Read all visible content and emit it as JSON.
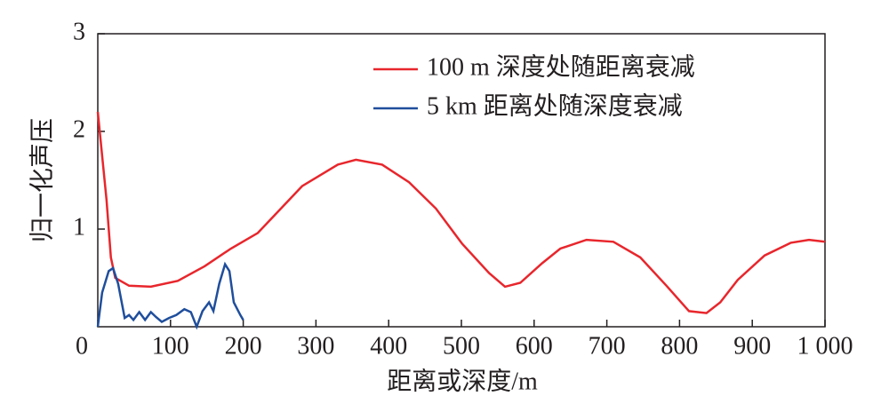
{
  "chart_data": {
    "type": "line",
    "xlabel": "距离或深度/m",
    "ylabel": "归一化声压",
    "xlim": [
      0,
      1000
    ],
    "ylim": [
      0,
      3
    ],
    "xticks": [
      0,
      100,
      200,
      300,
      400,
      500,
      600,
      700,
      800,
      900,
      {
        "value": 1000,
        "label": "1 000"
      }
    ],
    "yticks": [
      1,
      2,
      3
    ],
    "legend": "upper right",
    "series": [
      {
        "name": "100 m 深度处随距离衰减",
        "color": "#e8262c",
        "x": [
          0,
          12,
          18,
          24,
          43,
          73,
          110,
          147,
          183,
          220,
          281,
          330,
          355,
          391,
          428,
          465,
          501,
          538,
          560,
          581,
          611,
          636,
          672,
          709,
          746,
          782,
          813,
          837,
          856,
          880,
          917,
          953,
          978,
          1000
        ],
        "values": [
          2.2,
          1.3,
          0.71,
          0.5,
          0.42,
          0.41,
          0.47,
          0.62,
          0.8,
          0.96,
          1.44,
          1.66,
          1.71,
          1.66,
          1.48,
          1.21,
          0.85,
          0.55,
          0.41,
          0.45,
          0.65,
          0.8,
          0.89,
          0.87,
          0.71,
          0.42,
          0.16,
          0.14,
          0.25,
          0.48,
          0.73,
          0.86,
          0.89,
          0.87
        ]
      },
      {
        "name": "5 km 距离处随深度衰减",
        "color": "#1f4e9c",
        "x": [
          0,
          6,
          15,
          21,
          28,
          37,
          43,
          49,
          57,
          65,
          73,
          80,
          88,
          98,
          108,
          119,
          128,
          136,
          144,
          153,
          159,
          167,
          175,
          181,
          187,
          196,
          200
        ],
        "values": [
          0,
          0.35,
          0.57,
          0.6,
          0.44,
          0.09,
          0.12,
          0.07,
          0.15,
          0.07,
          0.15,
          0.1,
          0.05,
          0.09,
          0.12,
          0.18,
          0.15,
          0,
          0.16,
          0.25,
          0.16,
          0.44,
          0.64,
          0.57,
          0.25,
          0.12,
          0.07
        ]
      }
    ]
  }
}
